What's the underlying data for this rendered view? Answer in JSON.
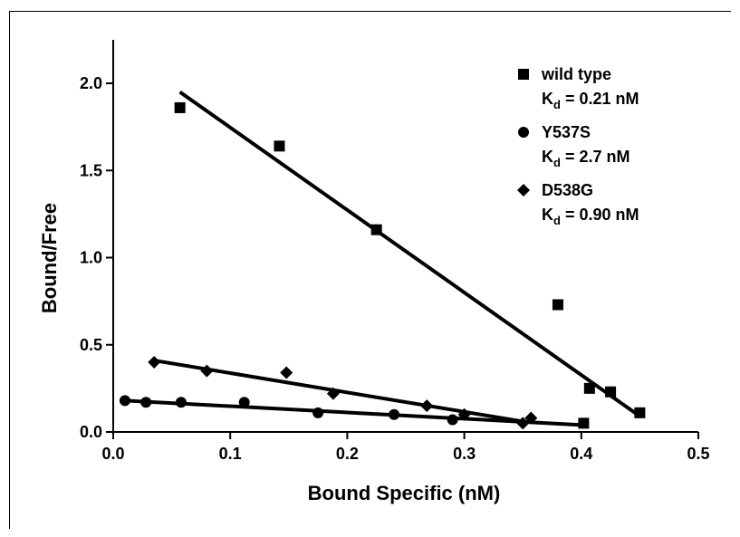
{
  "chart_data": {
    "type": "scatter",
    "xlabel": "Bound Specific (nM)",
    "ylabel": "Bound/Free",
    "xlim": [
      0,
      0.5
    ],
    "ylim": [
      0,
      2.0
    ],
    "xticks": [
      "0.0",
      "0.1",
      "0.2",
      "0.3",
      "0.4",
      "0.5"
    ],
    "yticks": [
      "0.0",
      "0.5",
      "1.0",
      "1.5",
      "2.0"
    ],
    "legend_position": "top-right",
    "series": [
      {
        "name": "wild type",
        "kd_label": "K",
        "kd_sub": "d",
        "kd_value": " = 0.21 nM",
        "marker": "square",
        "points": [
          [
            0.057,
            1.86
          ],
          [
            0.142,
            1.64
          ],
          [
            0.225,
            1.16
          ],
          [
            0.38,
            0.73
          ],
          [
            0.402,
            0.05
          ],
          [
            0.407,
            0.25
          ],
          [
            0.425,
            0.23
          ],
          [
            0.45,
            0.11
          ]
        ],
        "fit": [
          [
            0.057,
            1.95
          ],
          [
            0.45,
            0.09
          ]
        ]
      },
      {
        "name": "Y537S",
        "kd_label": "K",
        "kd_sub": "d",
        "kd_value": " = 2.7 nM",
        "marker": "circle",
        "points": [
          [
            0.01,
            0.18
          ],
          [
            0.028,
            0.17
          ],
          [
            0.058,
            0.17
          ],
          [
            0.112,
            0.17
          ],
          [
            0.175,
            0.11
          ],
          [
            0.24,
            0.1
          ],
          [
            0.29,
            0.07
          ]
        ],
        "fit": [
          [
            0.01,
            0.18
          ],
          [
            0.4,
            0.04
          ]
        ]
      },
      {
        "name": "D538G",
        "kd_label": "K",
        "kd_sub": "d",
        "kd_value": " = 0.90 nM",
        "marker": "diamond",
        "points": [
          [
            0.035,
            0.4
          ],
          [
            0.08,
            0.35
          ],
          [
            0.148,
            0.34
          ],
          [
            0.188,
            0.22
          ],
          [
            0.268,
            0.15
          ],
          [
            0.3,
            0.1
          ],
          [
            0.35,
            0.05
          ],
          [
            0.357,
            0.08
          ]
        ],
        "fit": [
          [
            0.035,
            0.41
          ],
          [
            0.35,
            0.06
          ]
        ]
      }
    ]
  }
}
